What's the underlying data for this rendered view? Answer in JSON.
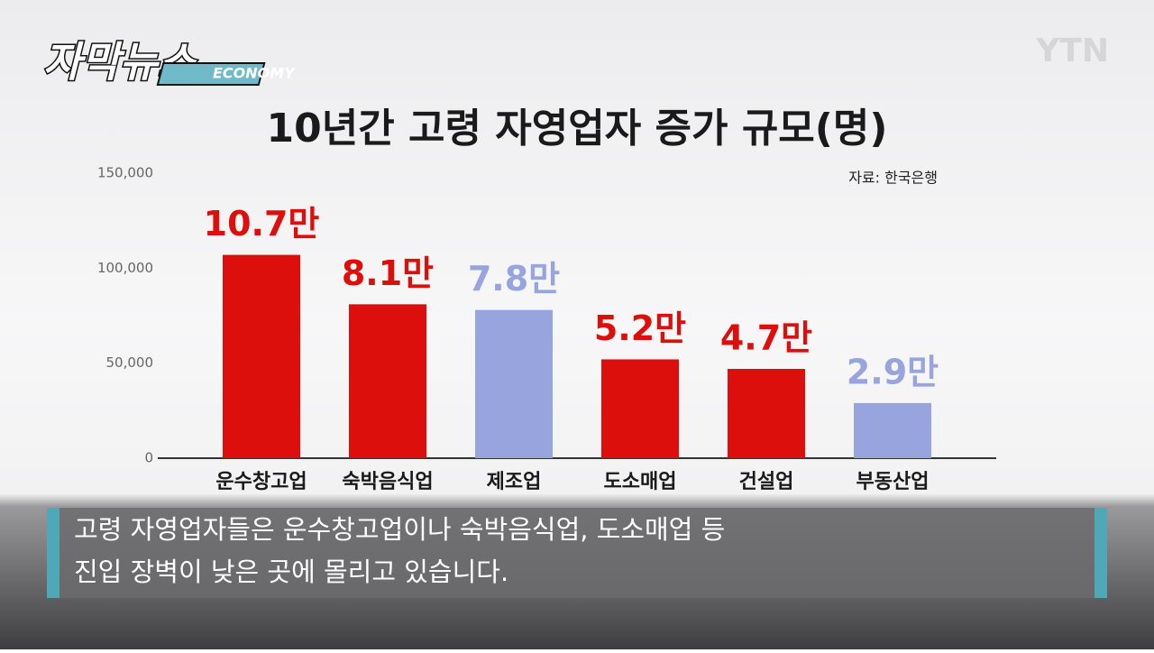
{
  "header": {
    "logo": "자막뉴스",
    "tag": "ECONOMY",
    "channel": "YTN"
  },
  "chart_data": {
    "type": "bar",
    "title": "10년간 고령 자영업자 증가 규모(명)",
    "source": "자료: 한국은행",
    "categories": [
      "운수창고업",
      "숙박음식업",
      "제조업",
      "도소매업",
      "건설업",
      "부동산업"
    ],
    "values": [
      107000,
      81000,
      78000,
      52000,
      47000,
      29000
    ],
    "value_labels": [
      "10.7만",
      "8.1만",
      "7.8만",
      "5.2만",
      "4.7만",
      "2.9만"
    ],
    "colors": [
      "#dc0f0c",
      "#dc0f0c",
      "#98a4de",
      "#dc0f0c",
      "#dc0f0c",
      "#98a4de"
    ],
    "ylim": [
      0,
      150000
    ],
    "yticks": [
      0,
      {
        "value": 50000,
        "label": "50,000"
      },
      {
        "value": 100000,
        "label": "100,000"
      },
      {
        "value": 150000,
        "label": "150,000"
      }
    ],
    "grid": false
  },
  "caption": {
    "lines": [
      "고령 자영업자들은 운수창고업이나 숙박음식업, 도소매업 등",
      "진입 장벽이 낮은 곳에 몰리고 있습니다."
    ]
  }
}
